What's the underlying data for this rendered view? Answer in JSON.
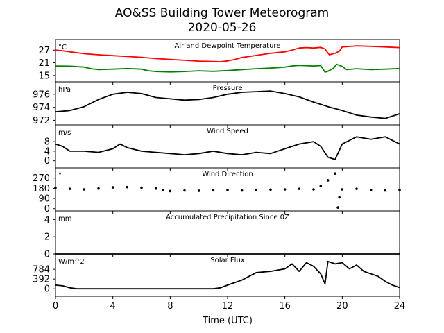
{
  "figure": {
    "title": "AO&SS Building Tower Meteorogram",
    "subtitle": "2020-05-26",
    "xlabel": "Time (UTC)"
  },
  "chart_data": [
    {
      "type": "line",
      "title": "Air and Dewpoint Temperature",
      "unit": "°C",
      "xlim": [
        0,
        24
      ],
      "ylim": [
        12,
        32
      ],
      "yticks": [
        15,
        21,
        27
      ],
      "series": [
        {
          "color": "#ff0000",
          "points": [
            [
              0,
              27
            ],
            [
              0.5,
              26.7
            ],
            [
              1,
              26.2
            ],
            [
              2,
              25.3
            ],
            [
              3,
              24.8
            ],
            [
              4,
              24.4
            ],
            [
              5,
              24
            ],
            [
              6,
              23.6
            ],
            [
              7,
              23
            ],
            [
              8,
              22.6
            ],
            [
              9,
              22.2
            ],
            [
              10,
              21.8
            ],
            [
              11,
              21.6
            ],
            [
              11.5,
              21.5
            ],
            [
              12,
              21.9
            ],
            [
              12.5,
              22.6
            ],
            [
              13,
              23.5
            ],
            [
              14,
              24.5
            ],
            [
              15,
              25.5
            ],
            [
              16,
              26.2
            ],
            [
              16.5,
              27
            ],
            [
              17,
              28
            ],
            [
              17.5,
              28.2
            ],
            [
              18,
              28
            ],
            [
              18.5,
              28.3
            ],
            [
              18.8,
              27.5
            ],
            [
              19.1,
              24.8
            ],
            [
              19.5,
              25.5
            ],
            [
              19.8,
              26.5
            ],
            [
              20,
              28.5
            ],
            [
              21,
              29
            ],
            [
              22,
              28.8
            ],
            [
              23,
              28.5
            ],
            [
              24,
              28.2
            ]
          ]
        },
        {
          "color": "#008000",
          "points": [
            [
              0,
              19.5
            ],
            [
              1,
              19.4
            ],
            [
              2,
              19
            ],
            [
              2.5,
              18.2
            ],
            [
              3,
              17.8
            ],
            [
              4,
              18
            ],
            [
              5,
              18.3
            ],
            [
              6,
              18
            ],
            [
              6.5,
              17.2
            ],
            [
              7,
              16.9
            ],
            [
              8,
              16.7
            ],
            [
              9,
              16.9
            ],
            [
              10,
              17.2
            ],
            [
              11,
              17
            ],
            [
              12,
              17.3
            ],
            [
              13,
              17.8
            ],
            [
              14,
              18.2
            ],
            [
              15,
              18.5
            ],
            [
              16,
              19
            ],
            [
              16.5,
              19.5
            ],
            [
              17,
              19.8
            ],
            [
              18,
              19.5
            ],
            [
              18.5,
              19.7
            ],
            [
              18.8,
              16.6
            ],
            [
              19,
              17
            ],
            [
              19.4,
              18.5
            ],
            [
              19.6,
              20.3
            ],
            [
              20,
              19.3
            ],
            [
              20.3,
              17.8
            ],
            [
              21,
              18.2
            ],
            [
              22,
              17.8
            ],
            [
              23,
              18
            ],
            [
              24,
              18.3
            ]
          ]
        }
      ]
    },
    {
      "type": "line",
      "title": "Pressure",
      "unit": "hPa",
      "xlim": [
        0,
        24
      ],
      "ylim": [
        971.3,
        977.9
      ],
      "yticks": [
        972,
        974,
        976
      ],
      "series": [
        {
          "color": "#000000",
          "points": [
            [
              0,
              973.3
            ],
            [
              1,
              973.5
            ],
            [
              2,
              974.1
            ],
            [
              3,
              975.2
            ],
            [
              4,
              976
            ],
            [
              5,
              976.3
            ],
            [
              6,
              976.1
            ],
            [
              7,
              975.5
            ],
            [
              8,
              975.3
            ],
            [
              9,
              975.1
            ],
            [
              10,
              975.2
            ],
            [
              11,
              975.5
            ],
            [
              12,
              976
            ],
            [
              13,
              976.3
            ],
            [
              14,
              976.4
            ],
            [
              15,
              976.5
            ],
            [
              16,
              976.1
            ],
            [
              17,
              975.6
            ],
            [
              18,
              974.8
            ],
            [
              19,
              974.1
            ],
            [
              20,
              973.5
            ],
            [
              21,
              972.8
            ],
            [
              22,
              972.5
            ],
            [
              23,
              972.3
            ],
            [
              24,
              973
            ]
          ]
        }
      ]
    },
    {
      "type": "line",
      "title": "Wind Speed",
      "unit": "m/s",
      "xlim": [
        0,
        24
      ],
      "ylim": [
        -3,
        15
      ],
      "yticks": [
        0,
        4,
        8
      ],
      "series": [
        {
          "color": "#000000",
          "points": [
            [
              0,
              7
            ],
            [
              0.5,
              6
            ],
            [
              1,
              4
            ],
            [
              2,
              4
            ],
            [
              3,
              3.5
            ],
            [
              4,
              5
            ],
            [
              4.5,
              7
            ],
            [
              5,
              5.5
            ],
            [
              6,
              4
            ],
            [
              7,
              3.5
            ],
            [
              8,
              3
            ],
            [
              9,
              2.5
            ],
            [
              10,
              3
            ],
            [
              11,
              4
            ],
            [
              12,
              3
            ],
            [
              13,
              2.5
            ],
            [
              14,
              3.5
            ],
            [
              15,
              3
            ],
            [
              16,
              5
            ],
            [
              17,
              7
            ],
            [
              18,
              8
            ],
            [
              18.5,
              6
            ],
            [
              19,
              1.5
            ],
            [
              19.5,
              0.5
            ],
            [
              20,
              7
            ],
            [
              21,
              10
            ],
            [
              22,
              9
            ],
            [
              23,
              10
            ],
            [
              24,
              7
            ]
          ]
        }
      ]
    },
    {
      "type": "scatter",
      "title": "Wind Direction",
      "unit": "°",
      "xlim": [
        0,
        24
      ],
      "ylim": [
        -20,
        360
      ],
      "yticks": [
        0,
        90,
        180,
        270
      ],
      "series": [
        {
          "color": "#000000",
          "points": [
            [
              0,
              185
            ],
            [
              1,
              175
            ],
            [
              2,
              170
            ],
            [
              3,
              178
            ],
            [
              4,
              188
            ],
            [
              5,
              190
            ],
            [
              6,
              185
            ],
            [
              7,
              178
            ],
            [
              7.5,
              165
            ],
            [
              8,
              155
            ],
            [
              9,
              160
            ],
            [
              10,
              158
            ],
            [
              11,
              162
            ],
            [
              12,
              165
            ],
            [
              13,
              160
            ],
            [
              14,
              165
            ],
            [
              15,
              168
            ],
            [
              16,
              170
            ],
            [
              17,
              175
            ],
            [
              18,
              170
            ],
            [
              18.5,
              200
            ],
            [
              19,
              250
            ],
            [
              19.5,
              310
            ],
            [
              19.7,
              10
            ],
            [
              19.8,
              100
            ],
            [
              20,
              170
            ],
            [
              21,
              175
            ],
            [
              22,
              165
            ],
            [
              23,
              160
            ],
            [
              24,
              165
            ]
          ]
        }
      ]
    },
    {
      "type": "line",
      "title": "Accumulated Precipitation Since 0Z",
      "unit": "mm",
      "xlim": [
        0,
        24
      ],
      "ylim": [
        0,
        5
      ],
      "yticks": [
        0,
        2,
        4
      ],
      "series": [
        {
          "color": "#000000",
          "points": [
            [
              0,
              0
            ],
            [
              24,
              0
            ]
          ]
        }
      ]
    },
    {
      "type": "line",
      "title": "Solar Flux",
      "unit": "W/m^2",
      "xlim": [
        0,
        24
      ],
      "ylim": [
        -300,
        1400
      ],
      "yticks": [
        0,
        392,
        784
      ],
      "series": [
        {
          "color": "#000000",
          "points": [
            [
              0,
              150
            ],
            [
              0.5,
              120
            ],
            [
              1,
              40
            ],
            [
              1.5,
              0
            ],
            [
              11,
              0
            ],
            [
              11.5,
              40
            ],
            [
              12,
              150
            ],
            [
              13,
              350
            ],
            [
              13.5,
              500
            ],
            [
              14,
              650
            ],
            [
              15,
              700
            ],
            [
              16,
              800
            ],
            [
              16.5,
              1000
            ],
            [
              17,
              700
            ],
            [
              17.5,
              1050
            ],
            [
              18,
              900
            ],
            [
              18.5,
              600
            ],
            [
              18.8,
              200
            ],
            [
              19,
              1100
            ],
            [
              19.5,
              1000
            ],
            [
              20,
              1050
            ],
            [
              20.5,
              800
            ],
            [
              21,
              950
            ],
            [
              21.5,
              700
            ],
            [
              22,
              600
            ],
            [
              22.5,
              500
            ],
            [
              23,
              300
            ],
            [
              23.5,
              150
            ],
            [
              24,
              50
            ]
          ]
        }
      ]
    }
  ]
}
